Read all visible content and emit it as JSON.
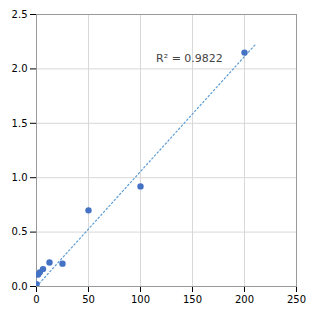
{
  "chart_data": {
    "type": "scatter",
    "series": [
      {
        "type": "scatter",
        "color": "#4472C4",
        "marker": "circle",
        "x": [
          0,
          1.5625,
          3.125,
          6.25,
          12.5,
          25,
          50,
          100,
          200
        ],
        "values": [
          0.02,
          0.11,
          0.13,
          0.16,
          0.22,
          0.21,
          0.7,
          0.92,
          2.15
        ]
      },
      {
        "type": "line",
        "color": "#5B9BD5",
        "line_style": "dotted",
        "x": [
          0,
          210
        ],
        "values": [
          0.0,
          2.22
        ]
      }
    ],
    "annotations": [
      {
        "text": "R² = 0.9822",
        "x": 115,
        "y": 2.1
      }
    ],
    "xlim": [
      0,
      250
    ],
    "ylim": [
      0,
      2.5
    ],
    "xticks": [
      0,
      50,
      100,
      150,
      200,
      250
    ],
    "yticks": [
      {
        "value": 0,
        "label": "0.0"
      },
      0.5,
      {
        "value": 1.0,
        "label": "1.0"
      },
      {
        "value": 1.5,
        "label": "1.5"
      },
      {
        "value": 2.0,
        "label": "2.0"
      },
      {
        "value": 2.5,
        "label": "2.5"
      }
    ],
    "grid": true
  }
}
